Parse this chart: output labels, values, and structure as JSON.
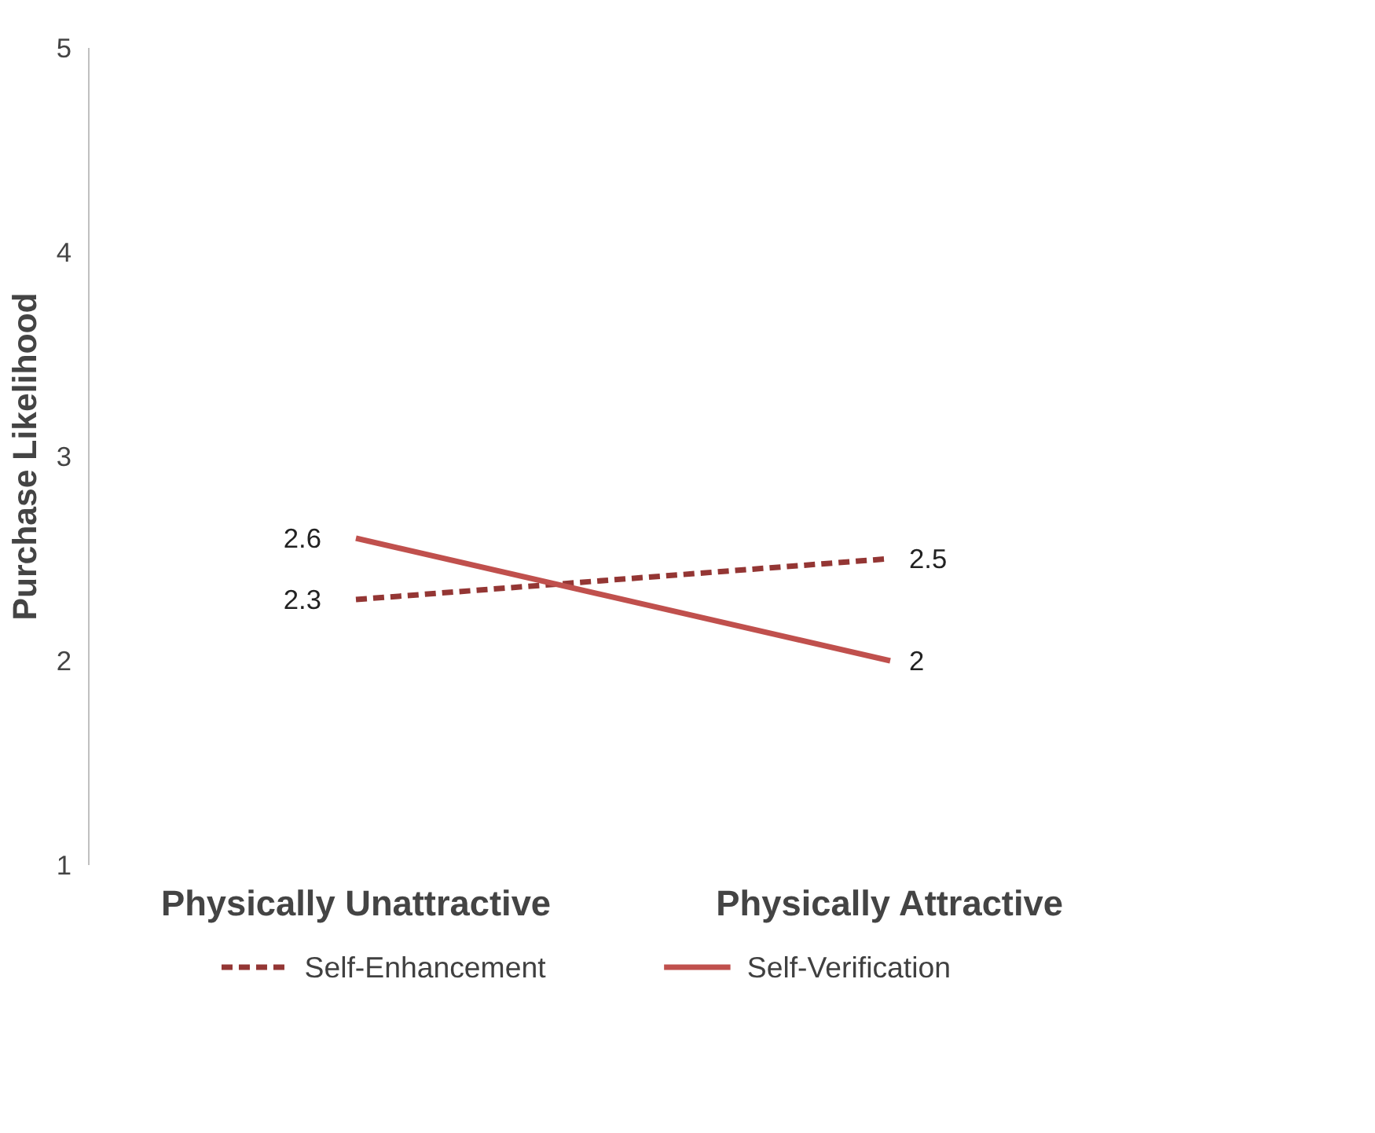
{
  "chart_data": {
    "type": "line",
    "ylabel": "Purchase Likelihood",
    "categories": [
      "Physically Unattractive",
      "Physically Attractive"
    ],
    "series": [
      {
        "name": "Self-Enhancement",
        "color": "#943634",
        "values": [
          2.3,
          2.5
        ],
        "line_style": "dashed"
      },
      {
        "name": "Self-Verification",
        "color": "#c0504d",
        "values": [
          2.6,
          2
        ],
        "line_style": "solid"
      }
    ],
    "ylim": [
      1,
      5
    ],
    "yticks": [
      1,
      2,
      3,
      4,
      5
    ],
    "grid": false,
    "legend": "bottom",
    "data_labels": true,
    "marker": "none"
  }
}
